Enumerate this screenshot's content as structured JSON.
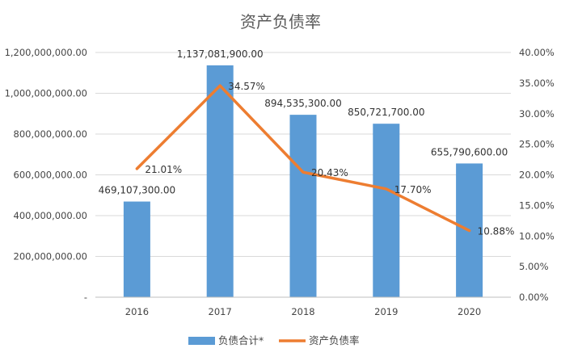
{
  "chart_data": {
    "type": "bar",
    "title": "资产负债率",
    "categories": [
      "2016",
      "2017",
      "2018",
      "2019",
      "2020"
    ],
    "series": [
      {
        "name": "负债合计*",
        "type": "bar",
        "axis": "left",
        "color": "#5B9BD5",
        "values": [
          469107300,
          1137081900,
          894535300,
          850721700,
          655790600
        ],
        "labels": [
          "469,107,300.00",
          "1,137,081,900.00",
          "894,535,300.00",
          "850,721,700.00",
          "655,790,600.00"
        ]
      },
      {
        "name": "资产负债率",
        "type": "line",
        "axis": "right",
        "color": "#ED7D31",
        "values": [
          21.01,
          34.57,
          20.43,
          17.7,
          10.88
        ],
        "labels": [
          "21.01%",
          "34.57%",
          "20.43%",
          "17.70%",
          "10.88%"
        ]
      }
    ],
    "ylim_left": [
      0,
      1200000000
    ],
    "yticks_left": [
      "-",
      "200,000,000.00",
      "400,000,000.00",
      "600,000,000.00",
      "800,000,000.00",
      "1,000,000,000.00",
      "1,200,000,000.00"
    ],
    "ylim_right": [
      0,
      40
    ],
    "yticks_right": [
      "0.00%",
      "5.00%",
      "10.00%",
      "15.00%",
      "20.00%",
      "25.00%",
      "30.00%",
      "35.00%",
      "40.00%"
    ],
    "grid": true,
    "legend": "bottom"
  }
}
